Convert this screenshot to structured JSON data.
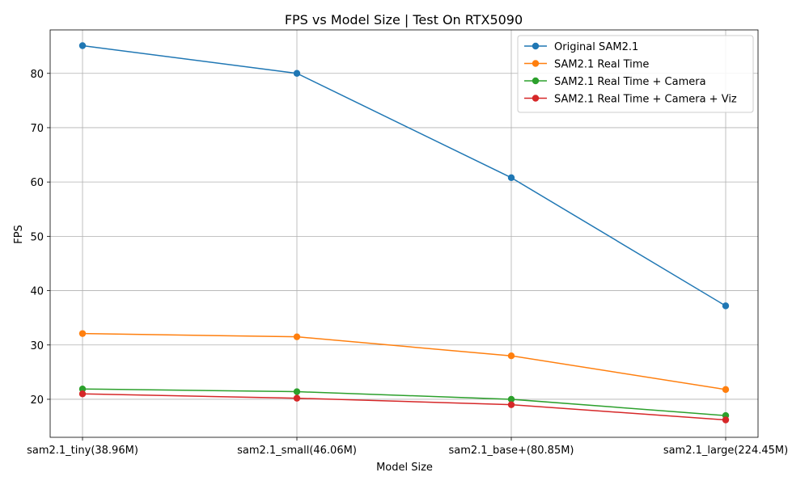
{
  "chart_data": {
    "type": "line",
    "title": "FPS vs Model Size | Test On RTX5090",
    "xlabel": "Model Size",
    "ylabel": "FPS",
    "categories": [
      "sam2.1_tiny(38.96M)",
      "sam2.1_small(46.06M)",
      "sam2.1_base+(80.85M)",
      "sam2.1_large(224.45M)"
    ],
    "ylim": [
      13,
      88
    ],
    "yticks": [
      20,
      30,
      40,
      50,
      60,
      70,
      80
    ],
    "grid": true,
    "legend_position": "top-right",
    "series": [
      {
        "name": "Original SAM2.1",
        "color": "#1f77b4",
        "values": [
          85.1,
          80.0,
          60.8,
          37.2
        ]
      },
      {
        "name": "SAM2.1 Real Time",
        "color": "#ff7f0e",
        "values": [
          32.1,
          31.5,
          28.0,
          21.8
        ]
      },
      {
        "name": "SAM2.1 Real Time + Camera",
        "color": "#2ca02c",
        "values": [
          21.9,
          21.4,
          20.0,
          17.0
        ]
      },
      {
        "name": "SAM2.1 Real Time + Camera + Viz",
        "color": "#d62728",
        "values": [
          21.0,
          20.2,
          19.0,
          16.2
        ]
      }
    ]
  }
}
